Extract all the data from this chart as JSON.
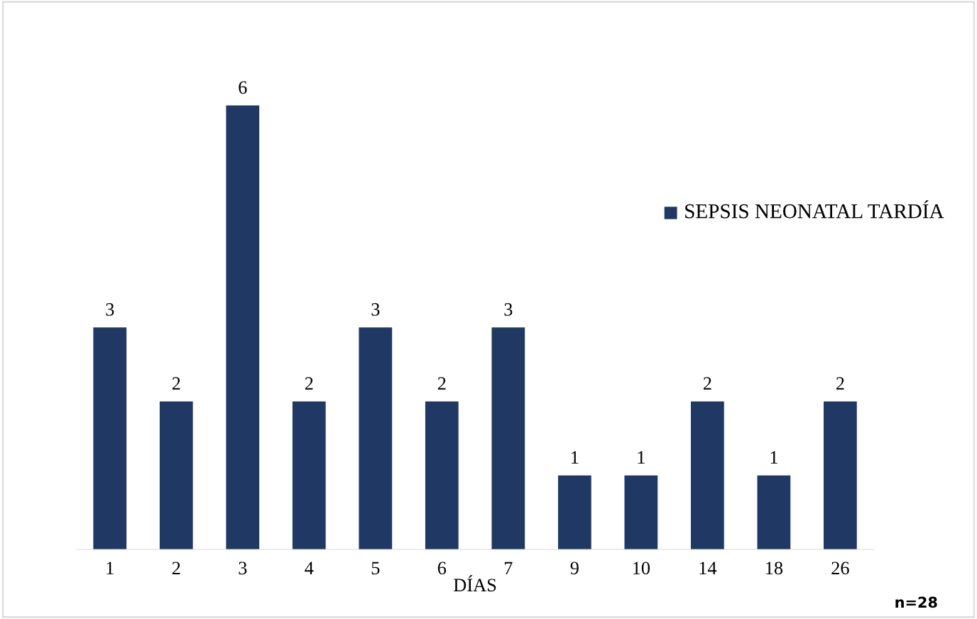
{
  "chart_data": {
    "type": "bar",
    "categories": [
      "1",
      "2",
      "3",
      "4",
      "5",
      "6",
      "7",
      "9",
      "10",
      "14",
      "18",
      "26"
    ],
    "series": [
      {
        "name": "SEPSIS NEONATAL TARDÍA",
        "color": "#203864",
        "values": [
          3,
          2,
          6,
          2,
          3,
          2,
          3,
          1,
          1,
          2,
          1,
          2
        ]
      }
    ],
    "xlabel": "DÍAS",
    "annotations": [
      "n=28"
    ],
    "data_labels": true,
    "legend": "right",
    "tick_labels": "x",
    "grid": false
  }
}
